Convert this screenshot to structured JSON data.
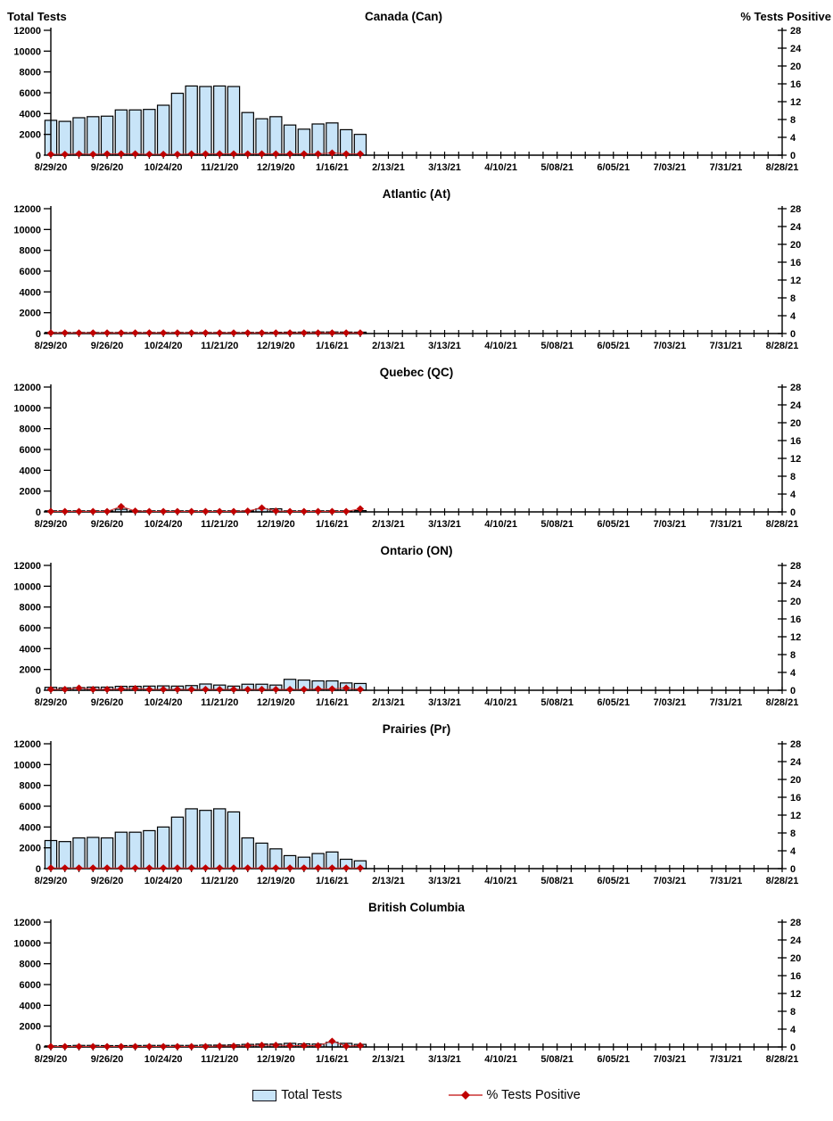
{
  "header": {
    "left_axis_title": "Total Tests",
    "right_axis_title": "% Tests Positive"
  },
  "legend": {
    "total_tests_label": "Total Tests",
    "pct_positive_label": "% Tests Positive"
  },
  "colors": {
    "bar_fill": "#C8E4F8",
    "bar_stroke": "#000000",
    "line": "#CC3333",
    "marker": "#C00000",
    "axis": "#000000"
  },
  "x_axis": {
    "start": "8/29/20",
    "end": "8/28/21",
    "weeks_total": 52,
    "tick_labels": [
      "8/29/20",
      "9/26/20",
      "10/24/20",
      "11/21/20",
      "12/19/20",
      "1/16/21",
      "2/13/21",
      "3/13/21",
      "4/10/21",
      "5/08/21",
      "6/05/21",
      "7/03/21",
      "7/31/21",
      "8/28/21"
    ],
    "label_every_n_weeks": 4,
    "data_dates": [
      "8/29/20",
      "9/05/20",
      "9/12/20",
      "9/19/20",
      "9/26/20",
      "10/03/20",
      "10/10/20",
      "10/17/20",
      "10/24/20",
      "10/31/20",
      "11/07/20",
      "11/14/20",
      "11/21/20",
      "11/28/20",
      "12/05/20",
      "12/12/20",
      "12/19/20",
      "12/26/20",
      "1/02/21",
      "1/09/21",
      "1/16/21",
      "1/23/21",
      "1/30/21"
    ]
  },
  "left_axis": {
    "title": "Total Tests",
    "min": 0,
    "max": 12000,
    "step": 2000,
    "tick_labels": [
      "0",
      "2000",
      "4000",
      "6000",
      "8000",
      "10000",
      "12000"
    ]
  },
  "right_axis": {
    "title": "% Tests Positive",
    "min": 0,
    "max": 28,
    "step": 4,
    "tick_labels": [
      "0",
      "4",
      "8",
      "12",
      "16",
      "20",
      "24",
      "28"
    ]
  },
  "chart_data": [
    {
      "type": "bar+line",
      "title": "Canada (Can)",
      "bars": {
        "name": "Total Tests",
        "values": [
          3350,
          3250,
          3600,
          3700,
          3750,
          4350,
          4350,
          4400,
          4800,
          5950,
          6650,
          6600,
          6650,
          6600,
          4100,
          3500,
          3700,
          2900,
          2500,
          3000,
          3100,
          2450,
          2000
        ]
      },
      "line": {
        "name": "% Tests Positive",
        "values": [
          0.2,
          0.2,
          0.3,
          0.2,
          0.3,
          0.3,
          0.3,
          0.2,
          0.2,
          0.2,
          0.3,
          0.3,
          0.3,
          0.3,
          0.3,
          0.3,
          0.3,
          0.3,
          0.3,
          0.3,
          0.5,
          0.3,
          0.3
        ]
      }
    },
    {
      "type": "bar+line",
      "title": "Atlantic (At)",
      "bars": {
        "name": "Total Tests",
        "values": [
          60,
          60,
          70,
          70,
          70,
          80,
          80,
          80,
          80,
          90,
          90,
          100,
          100,
          100,
          110,
          110,
          120,
          130,
          140,
          150,
          150,
          140,
          130
        ]
      },
      "line": {
        "name": "% Tests Positive",
        "values": [
          0.15,
          0.15,
          0.15,
          0.15,
          0.15,
          0.15,
          0.15,
          0.15,
          0.15,
          0.15,
          0.15,
          0.15,
          0.15,
          0.15,
          0.15,
          0.15,
          0.15,
          0.15,
          0.15,
          0.15,
          0.15,
          0.15,
          0.15
        ]
      }
    },
    {
      "type": "bar+line",
      "title": "Quebec (QC)",
      "bars": {
        "name": "Total Tests",
        "values": [
          50,
          50,
          50,
          50,
          60,
          250,
          80,
          60,
          60,
          60,
          60,
          70,
          70,
          70,
          80,
          300,
          300,
          80,
          80,
          80,
          80,
          80,
          120
        ]
      },
      "line": {
        "name": "% Tests Positive",
        "values": [
          0.1,
          0.1,
          0.1,
          0.1,
          0.1,
          1.2,
          0.2,
          0.1,
          0.1,
          0.1,
          0.1,
          0.1,
          0.1,
          0.1,
          0.2,
          0.9,
          0.2,
          0.1,
          0.1,
          0.1,
          0.1,
          0.1,
          0.7
        ]
      }
    },
    {
      "type": "bar+line",
      "title": "Ontario (ON)",
      "bars": {
        "name": "Total Tests",
        "values": [
          280,
          230,
          250,
          300,
          300,
          380,
          380,
          400,
          420,
          400,
          450,
          600,
          500,
          400,
          580,
          580,
          500,
          1050,
          980,
          900,
          900,
          700,
          650
        ]
      },
      "line": {
        "name": "% Tests Positive",
        "values": [
          0.2,
          0.2,
          0.5,
          0.2,
          0.2,
          0.3,
          0.4,
          0.2,
          0.2,
          0.2,
          0.2,
          0.2,
          0.2,
          0.2,
          0.2,
          0.2,
          0.2,
          0.2,
          0.2,
          0.3,
          0.3,
          0.5,
          0.2
        ]
      }
    },
    {
      "type": "bar+line",
      "title": "Prairies (Pr)",
      "bars": {
        "name": "Total Tests",
        "values": [
          2700,
          2600,
          2950,
          3000,
          2950,
          3500,
          3500,
          3650,
          4000,
          4950,
          5750,
          5600,
          5750,
          5450,
          2950,
          2450,
          1900,
          1250,
          1100,
          1450,
          1600,
          900,
          750
        ]
      },
      "line": {
        "name": "% Tests Positive",
        "values": [
          0.15,
          0.15,
          0.15,
          0.15,
          0.15,
          0.15,
          0.15,
          0.15,
          0.15,
          0.15,
          0.15,
          0.15,
          0.15,
          0.15,
          0.15,
          0.15,
          0.15,
          0.15,
          0.15,
          0.15,
          0.15,
          0.15,
          0.15
        ]
      }
    },
    {
      "type": "bar+line",
      "title": "British Columbia",
      "bars": {
        "name": "Total Tests",
        "values": [
          100,
          120,
          150,
          150,
          130,
          130,
          140,
          150,
          150,
          150,
          150,
          180,
          180,
          200,
          250,
          280,
          280,
          350,
          300,
          280,
          450,
          350,
          250
        ]
      },
      "line": {
        "name": "% Tests Positive",
        "values": [
          0.1,
          0.1,
          0.1,
          0.1,
          0.1,
          0.1,
          0.1,
          0.1,
          0.1,
          0.1,
          0.1,
          0.1,
          0.2,
          0.2,
          0.3,
          0.4,
          0.4,
          0.3,
          0.3,
          0.3,
          1.3,
          0.2,
          0.3
        ]
      }
    }
  ]
}
